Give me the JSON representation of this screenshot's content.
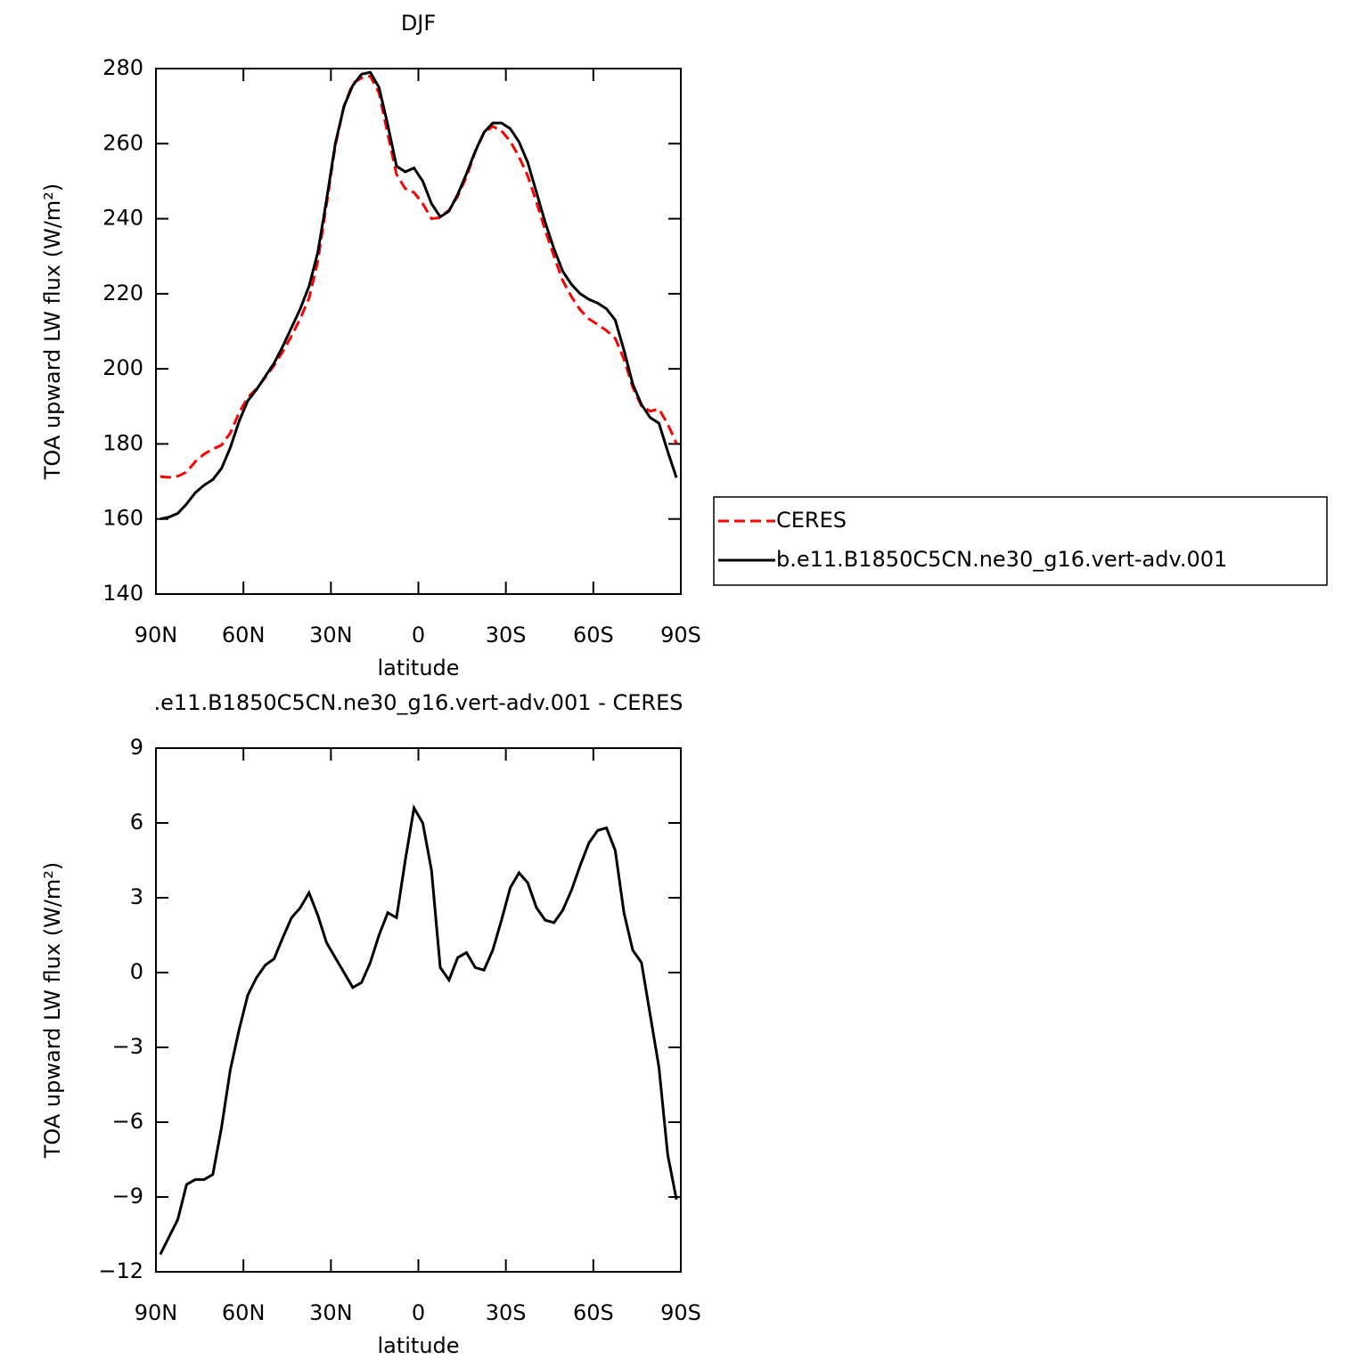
{
  "chart_data": [
    {
      "type": "line",
      "title": "DJF",
      "xlabel": "latitude",
      "ylabel": "TOA upward LW flux (W/m²)",
      "x": [
        88.5,
        85.5,
        82.5,
        79.5,
        76.5,
        73.5,
        70.5,
        67.5,
        64.5,
        61.5,
        58.5,
        55.5,
        52.5,
        49.5,
        46.5,
        43.5,
        40.5,
        37.5,
        34.5,
        31.5,
        28.5,
        25.5,
        22.5,
        19.5,
        16.5,
        13.5,
        10.5,
        7.5,
        4.5,
        1.5,
        -1.5,
        -4.5,
        -7.5,
        -10.5,
        -13.5,
        -16.5,
        -19.5,
        -22.5,
        -25.5,
        -28.5,
        -31.5,
        -34.5,
        -37.5,
        -40.5,
        -43.5,
        -46.5,
        -49.5,
        -52.5,
        -55.5,
        -58.5,
        -61.5,
        -64.5,
        -67.5,
        -70.5,
        -73.5,
        -76.5,
        -79.5,
        -82.5,
        -85.5,
        -88.5
      ],
      "series": [
        {
          "name": "CERES",
          "color": "#ff0000",
          "dash": "dashed",
          "values": [
            171.3,
            171.1,
            171.4,
            172.5,
            175.3,
            177.3,
            178.6,
            179.7,
            182.9,
            188.3,
            192.4,
            194.7,
            197.7,
            200.9,
            204.6,
            208.8,
            213.4,
            218.8,
            228.7,
            243.8,
            259.4,
            270,
            276.1,
            277.5,
            278,
            273.5,
            262.5,
            251.8,
            248,
            247,
            244,
            240,
            240.3,
            242.3,
            246,
            251.2,
            257.8,
            262.9,
            264.6,
            263.4,
            260.6,
            256.5,
            251.4,
            244.4,
            236.9,
            230,
            223.5,
            219.2,
            215.7,
            213.3,
            211.8,
            210.2,
            208.1,
            202.6,
            195.1,
            190.1,
            188.7,
            189.3,
            185.3,
            180.1
          ]
        },
        {
          "name": "b.e11.B1850C5CN.ne30_g16.vert-adv.001",
          "color": "#000000",
          "dash": "solid",
          "values": [
            160,
            160.5,
            161.5,
            164,
            167,
            169,
            170.5,
            173.5,
            179,
            186,
            191.5,
            194.5,
            198,
            201.5,
            206,
            211,
            216,
            222,
            231,
            245,
            260,
            270,
            275.5,
            278.5,
            279,
            275,
            265,
            254,
            252.5,
            253.5,
            250,
            244,
            240.5,
            242,
            246.5,
            252,
            258,
            263,
            265.5,
            265.5,
            264,
            260.5,
            255,
            247,
            239,
            232,
            226,
            222.5,
            220,
            218.5,
            217.5,
            216,
            213,
            205,
            196,
            190.5,
            187,
            185.5,
            178,
            171
          ]
        }
      ],
      "xlim": [
        90,
        -90
      ],
      "xticks": [
        {
          "value": 90,
          "label": "90N"
        },
        {
          "value": 60,
          "label": "60N"
        },
        {
          "value": 30,
          "label": "30N"
        },
        0,
        {
          "value": -30,
          "label": "30S"
        },
        {
          "value": -60,
          "label": "60S"
        },
        {
          "value": -90,
          "label": "90S"
        }
      ],
      "ylim": [
        140,
        280
      ],
      "yticks": [
        140,
        160,
        180,
        200,
        220,
        240,
        260,
        280
      ],
      "grid": false,
      "legend": "outside-right"
    },
    {
      "type": "line",
      "title": ".e11.B1850C5CN.ne30_g16.vert-adv.001 - CERES",
      "xlabel": "latitude",
      "ylabel": "TOA upward LW flux (W/m²)",
      "x": [
        88.5,
        85.5,
        82.5,
        79.5,
        76.5,
        73.5,
        70.5,
        67.5,
        64.5,
        61.5,
        58.5,
        55.5,
        52.5,
        49.5,
        46.5,
        43.5,
        40.5,
        37.5,
        34.5,
        31.5,
        28.5,
        25.5,
        22.5,
        19.5,
        16.5,
        13.5,
        10.5,
        7.5,
        4.5,
        1.5,
        -1.5,
        -4.5,
        -7.5,
        -10.5,
        -13.5,
        -16.5,
        -19.5,
        -22.5,
        -25.5,
        -28.5,
        -31.5,
        -34.5,
        -37.5,
        -40.5,
        -43.5,
        -46.5,
        -49.5,
        -52.5,
        -55.5,
        -58.5,
        -61.5,
        -64.5,
        -67.5,
        -70.5,
        -73.5,
        -76.5,
        -79.5,
        -82.5,
        -85.5,
        -88.5
      ],
      "series": [
        {
          "color": "#000000",
          "dash": "solid",
          "values": [
            -11.3,
            -10.6,
            -9.9,
            -8.5,
            -8.3,
            -8.3,
            -8.1,
            -6.2,
            -3.9,
            -2.3,
            -0.9,
            -0.2,
            0.3,
            0.55,
            1.4,
            2.2,
            2.6,
            3.2,
            2.3,
            1.2,
            0.6,
            0,
            -0.6,
            -0.4,
            0.4,
            1.5,
            2.4,
            2.2,
            4.5,
            6.6,
            6,
            4.1,
            0.2,
            -0.3,
            0.6,
            0.8,
            0.2,
            0.1,
            0.9,
            2.1,
            3.4,
            4,
            3.6,
            2.6,
            2.1,
            2,
            2.5,
            3.3,
            4.3,
            5.2,
            5.7,
            5.8,
            4.9,
            2.4,
            0.9,
            0.4,
            -1.7,
            -3.8,
            -7.3,
            -9.1
          ]
        }
      ],
      "xlim": [
        90,
        -90
      ],
      "xticks": [
        {
          "value": 90,
          "label": "90N"
        },
        {
          "value": 60,
          "label": "60N"
        },
        {
          "value": 30,
          "label": "30N"
        },
        0,
        {
          "value": -30,
          "label": "30S"
        },
        {
          "value": -60,
          "label": "60S"
        },
        {
          "value": -90,
          "label": "90S"
        }
      ],
      "ylim": [
        -12,
        9
      ],
      "yticks": [
        {
          "value": -12,
          "label": "−12"
        },
        {
          "value": -9,
          "label": "−9"
        },
        {
          "value": -6,
          "label": "−6"
        },
        {
          "value": -3,
          "label": "−3"
        },
        0,
        3,
        6,
        9
      ],
      "grid": false
    }
  ]
}
